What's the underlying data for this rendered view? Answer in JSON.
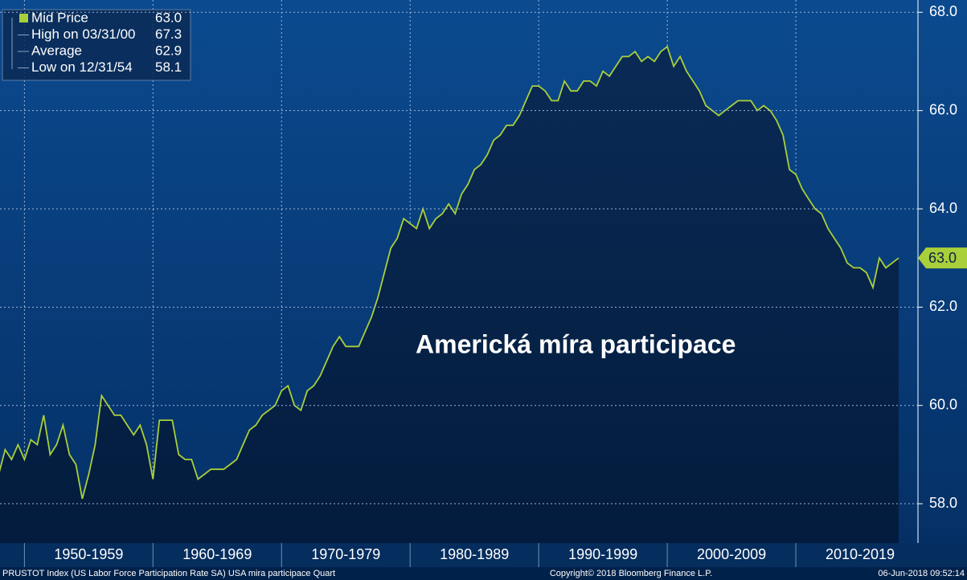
{
  "chart_data": {
    "type": "line",
    "legend": [
      {
        "label": "Mid Price",
        "value": "63.0"
      },
      {
        "label": "High on 03/31/00",
        "value": "67.3"
      },
      {
        "label": "Average",
        "value": "62.9"
      },
      {
        "label": "Low on 12/31/54",
        "value": "58.1"
      }
    ],
    "annotation": "Americká míra participace",
    "footer": {
      "left": "PRUSTOT Index (US Labor Force Participation Rate SA) USA mira participace  Quart",
      "center": "Copyright© 2018 Bloomberg Finance L.P.",
      "right": "06-Jun-2018 09:52:14"
    },
    "xlim": [
      1948.1,
      2019.5
    ],
    "ylim": [
      57.2,
      68.25
    ],
    "xticks": [
      {
        "value": 1950,
        "label": "1950-1959"
      },
      {
        "value": 1960,
        "label": "1960-1969"
      },
      {
        "value": 1970,
        "label": "1970-1979"
      },
      {
        "value": 1980,
        "label": "1980-1989"
      },
      {
        "value": 1990,
        "label": "1990-1999"
      },
      {
        "value": 2000,
        "label": "2000-2009"
      },
      {
        "value": 2010,
        "label": "2010-2019"
      }
    ],
    "yticks": [
      {
        "value": 58,
        "label": "58.0"
      },
      {
        "value": 60,
        "label": "60.0"
      },
      {
        "value": 62,
        "label": "62.0"
      },
      {
        "value": 64,
        "label": "64.0"
      },
      {
        "value": 66,
        "label": "66.0"
      },
      {
        "value": 68,
        "label": "68.0"
      }
    ],
    "grid": true,
    "series": [
      {
        "name": "Mid Price",
        "color": "#a9cf3a",
        "x": [
          1948,
          1948.5,
          1949,
          1949.5,
          1950,
          1950.5,
          1951,
          1951.5,
          1952,
          1952.5,
          1953,
          1953.5,
          1954,
          1954.5,
          1955,
          1955.5,
          1956,
          1956.5,
          1957,
          1957.5,
          1958,
          1958.5,
          1959,
          1959.5,
          1960,
          1960.5,
          1961,
          1961.5,
          1962,
          1962.5,
          1963,
          1963.5,
          1964,
          1964.5,
          1965,
          1965.5,
          1966,
          1966.5,
          1967,
          1967.5,
          1968,
          1968.5,
          1969,
          1969.5,
          1970,
          1970.5,
          1971,
          1971.5,
          1972,
          1972.5,
          1973,
          1973.5,
          1974,
          1974.5,
          1975,
          1975.5,
          1976,
          1976.5,
          1977,
          1977.5,
          1978,
          1978.5,
          1979,
          1979.5,
          1980,
          1980.5,
          1981,
          1981.5,
          1982,
          1982.5,
          1983,
          1983.5,
          1984,
          1984.5,
          1985,
          1985.5,
          1986,
          1986.5,
          1987,
          1987.5,
          1988,
          1988.5,
          1989,
          1989.5,
          1990,
          1990.5,
          1991,
          1991.5,
          1992,
          1992.5,
          1993,
          1993.5,
          1994,
          1994.5,
          1995,
          1995.5,
          1996,
          1996.5,
          1997,
          1997.5,
          1998,
          1998.5,
          1999,
          1999.5,
          2000,
          2000.5,
          2001,
          2001.5,
          2002,
          2002.5,
          2003,
          2003.5,
          2004,
          2004.5,
          2005,
          2005.5,
          2006,
          2006.5,
          2007,
          2007.5,
          2008,
          2008.5,
          2009,
          2009.5,
          2010,
          2010.5,
          2011,
          2011.5,
          2012,
          2012.5,
          2013,
          2013.5,
          2014,
          2014.5,
          2015,
          2015.5,
          2016,
          2016.5,
          2017,
          2017.5,
          2018
        ],
        "values": [
          58.6,
          59.1,
          58.9,
          59.2,
          58.9,
          59.3,
          59.2,
          59.8,
          59.0,
          59.2,
          59.6,
          59.0,
          58.8,
          58.1,
          58.6,
          59.2,
          60.2,
          60.0,
          59.8,
          59.8,
          59.6,
          59.4,
          59.6,
          59.2,
          58.5,
          59.7,
          59.7,
          59.7,
          59.0,
          58.9,
          58.9,
          58.5,
          58.6,
          58.7,
          58.7,
          58.7,
          58.8,
          58.9,
          59.2,
          59.5,
          59.6,
          59.8,
          59.9,
          60.0,
          60.3,
          60.4,
          60.0,
          59.9,
          60.3,
          60.4,
          60.6,
          60.9,
          61.2,
          61.4,
          61.2,
          61.2,
          61.2,
          61.5,
          61.8,
          62.2,
          62.7,
          63.2,
          63.4,
          63.8,
          63.7,
          63.6,
          64.0,
          63.6,
          63.8,
          63.9,
          64.1,
          63.9,
          64.3,
          64.5,
          64.8,
          64.9,
          65.1,
          65.4,
          65.5,
          65.7,
          65.7,
          65.9,
          66.2,
          66.5,
          66.5,
          66.4,
          66.2,
          66.2,
          66.6,
          66.4,
          66.4,
          66.6,
          66.6,
          66.5,
          66.8,
          66.7,
          66.9,
          67.1,
          67.1,
          67.2,
          67.0,
          67.1,
          67.0,
          67.2,
          67.3,
          66.9,
          67.1,
          66.8,
          66.6,
          66.4,
          66.1,
          66.0,
          65.9,
          66.0,
          66.1,
          66.2,
          66.2,
          66.2,
          66.0,
          66.1,
          66.0,
          65.8,
          65.5,
          64.8,
          64.7,
          64.4,
          64.2,
          64.0,
          63.9,
          63.6,
          63.4,
          63.2,
          62.9,
          62.8,
          62.8,
          62.7,
          62.4,
          63.0,
          62.8,
          62.9,
          63.0
        ]
      }
    ]
  }
}
